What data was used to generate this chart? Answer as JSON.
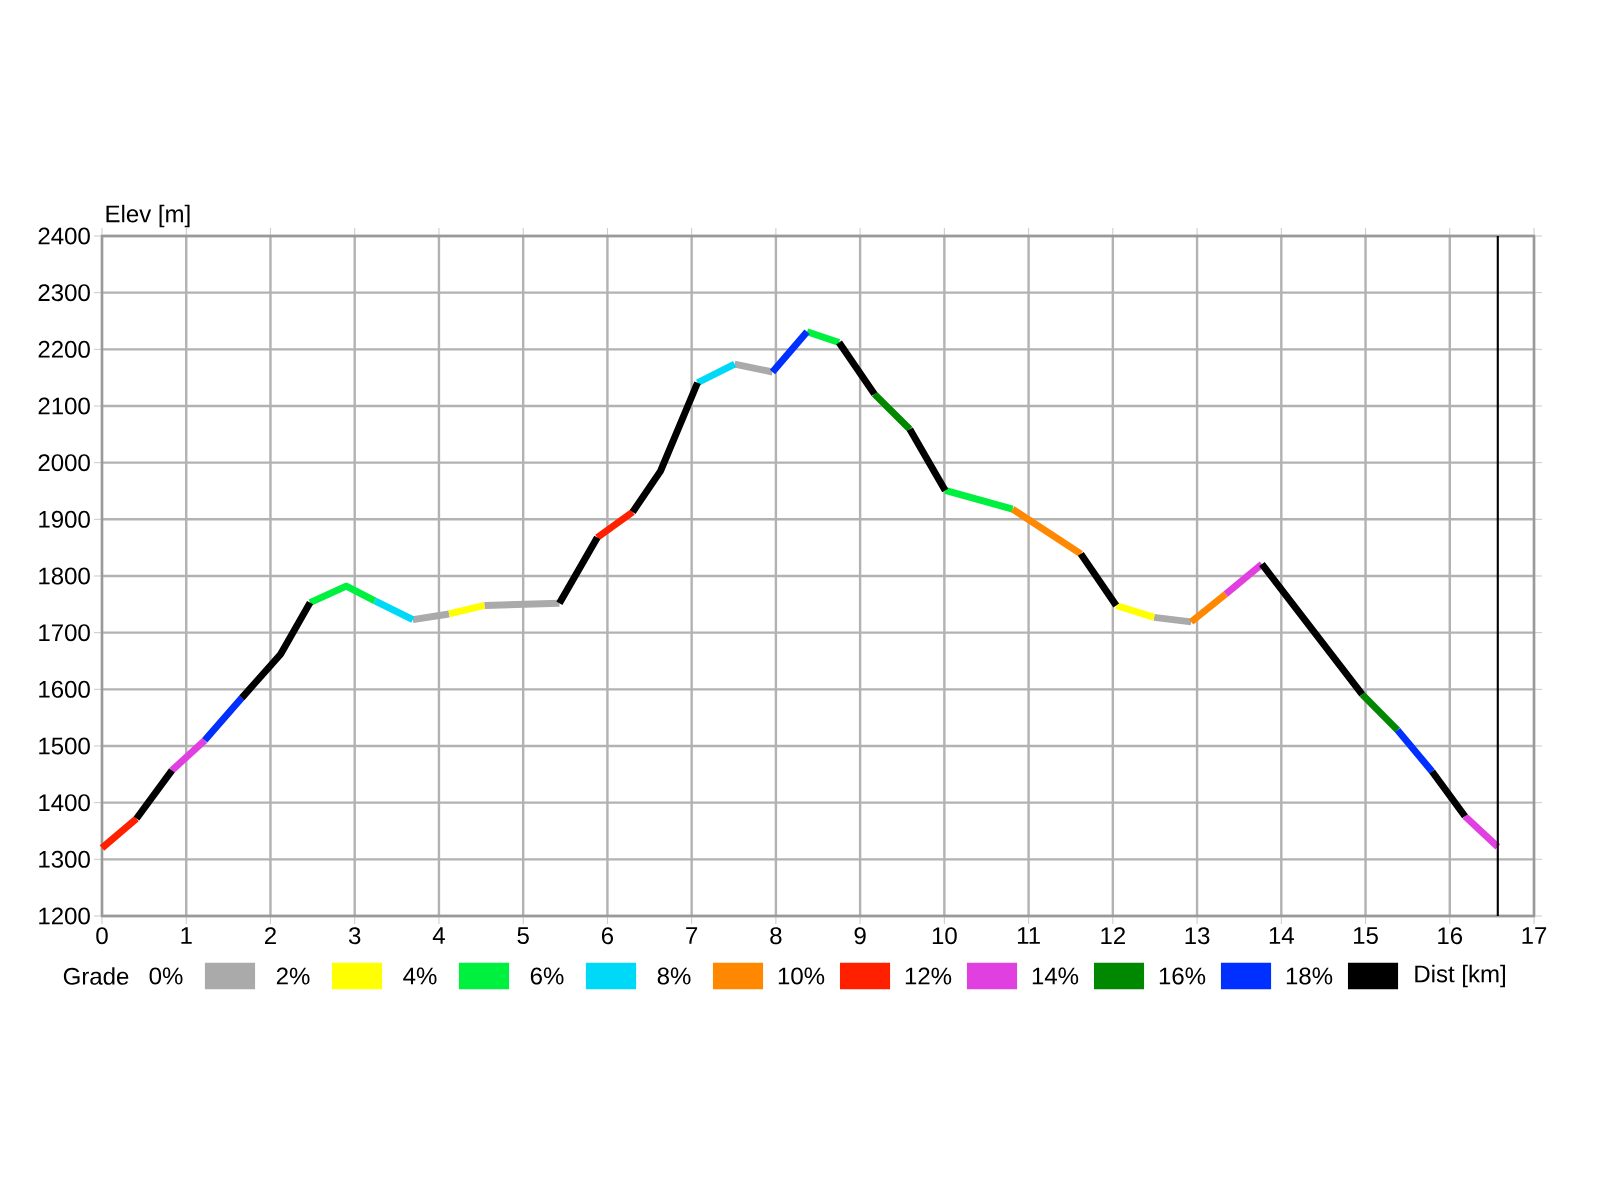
{
  "chart_data": {
    "type": "line",
    "xlabel": "Dist [km]",
    "ylabel": "Elev [m]",
    "legend_title": "Grade",
    "xlim": [
      0,
      17
    ],
    "xticks": [
      0,
      1,
      2,
      3,
      4,
      5,
      6,
      7,
      8,
      9,
      10,
      11,
      12,
      13,
      14,
      15,
      16,
      17
    ],
    "ylim": [
      1200,
      2400
    ],
    "yticks": [
      1200,
      1300,
      1400,
      1500,
      1600,
      1700,
      1800,
      1900,
      2000,
      2100,
      2200,
      2300,
      2400
    ],
    "grid": true,
    "legend": "bottom",
    "ref_lines": [
      {
        "axis": "x",
        "value": 16.57,
        "color": "#000000"
      }
    ],
    "series": [
      {
        "name": "0%",
        "color": "#aaaaaa",
        "x": [
          3.69,
          4.12,
          null,
          4.54,
          5.43,
          null,
          7.51,
          7.96,
          null,
          12.49,
          12.93
        ],
        "values": [
          1723,
          1733,
          null,
          1748,
          1752,
          null,
          2174,
          2160,
          null,
          1727,
          1719
        ]
      },
      {
        "name": "2%",
        "color": "#ffff00",
        "x": [
          4.12,
          4.54,
          null,
          12.04,
          12.49
        ],
        "values": [
          1733,
          1748,
          null,
          1748,
          1727
        ]
      },
      {
        "name": "4%",
        "color": "#00f040",
        "x": [
          2.47,
          2.9,
          3.24,
          null,
          8.37,
          8.75,
          null,
          10.01,
          10.81
        ],
        "values": [
          1753,
          1782,
          1756,
          null,
          2231,
          2212,
          null,
          1951,
          1918
        ]
      },
      {
        "name": "6%",
        "color": "#00d8f8",
        "x": [
          3.24,
          3.69,
          null,
          7.07,
          7.51
        ],
        "values": [
          1756,
          1723,
          null,
          2141,
          2174
        ]
      },
      {
        "name": "8%",
        "color": "#ff8800",
        "x": [
          10.81,
          11.62,
          null,
          12.93,
          13.34
        ],
        "values": [
          1918,
          1839,
          null,
          1719,
          1768
        ]
      },
      {
        "name": "10%",
        "color": "#ff2000",
        "x": [
          0,
          0.41,
          null,
          5.88,
          6.3
        ],
        "values": [
          1320,
          1372,
          null,
          1868,
          1913
        ]
      },
      {
        "name": "12%",
        "color": "#e040e0",
        "x": [
          0.83,
          1.22,
          null,
          13.34,
          13.77,
          null,
          16.18,
          16.57
        ],
        "values": [
          1457,
          1510,
          null,
          1768,
          1821,
          null,
          1376,
          1322
        ]
      },
      {
        "name": "14%",
        "color": "#008800",
        "x": [
          9.17,
          9.59,
          null,
          14.96,
          15.38
        ],
        "values": [
          2121,
          2059,
          null,
          1591,
          1528
        ]
      },
      {
        "name": "16%",
        "color": "#0030ff",
        "x": [
          1.22,
          1.66,
          null,
          7.96,
          8.37,
          null,
          15.38,
          15.79
        ],
        "values": [
          1510,
          1585,
          null,
          2160,
          2231,
          null,
          1528,
          1455
        ]
      },
      {
        "name": "18%",
        "color": "#000000",
        "x": [
          0.41,
          0.83,
          null,
          1.66,
          2.12,
          2.47,
          null,
          5.43,
          5.88,
          null,
          6.3,
          6.63,
          7.07,
          null,
          8.75,
          9.17,
          null,
          9.59,
          10.01,
          null,
          11.62,
          12.04,
          null,
          13.77,
          14.96,
          null,
          15.79,
          16.18
        ],
        "values": [
          1372,
          1457,
          null,
          1585,
          1662,
          1753,
          null,
          1752,
          1868,
          null,
          1913,
          1985,
          2141,
          null,
          2212,
          2121,
          null,
          2059,
          1951,
          null,
          1839,
          1748,
          null,
          1821,
          1591,
          null,
          1455,
          1376
        ]
      }
    ]
  }
}
